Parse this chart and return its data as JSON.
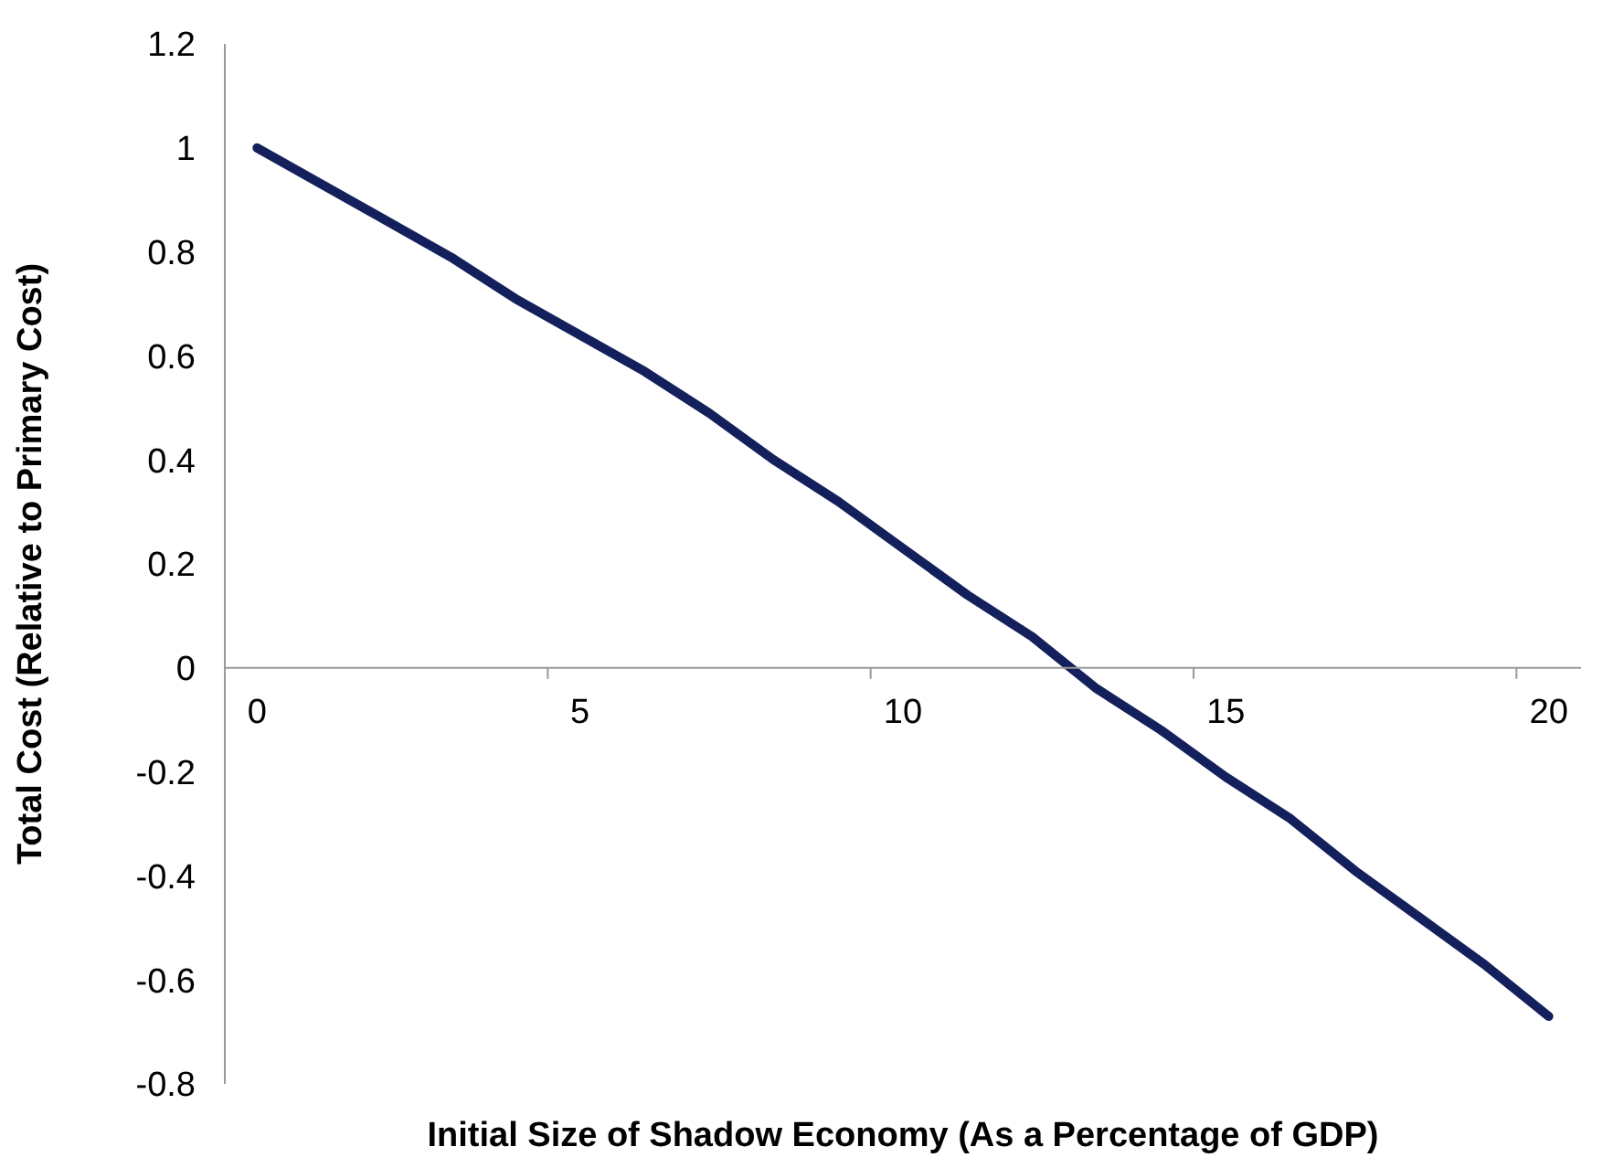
{
  "chart_data": {
    "type": "line",
    "xlabel": "Initial Size of Shadow Economy (As a Percentage of GDP)",
    "ylabel": "Total Cost (Relative to Primary Cost)",
    "categories": [
      "0",
      null,
      null,
      null,
      null,
      "5",
      null,
      null,
      null,
      null,
      "10",
      null,
      null,
      null,
      null,
      "15",
      null,
      null,
      null,
      null,
      "20"
    ],
    "series": [
      {
        "color": "#13205c",
        "values": [
          1.0,
          0.93,
          0.86,
          0.79,
          0.71,
          0.64,
          0.57,
          0.49,
          0.4,
          0.32,
          0.23,
          0.14,
          0.06,
          -0.04,
          -0.12,
          -0.21,
          -0.29,
          -0.39,
          -0.48,
          -0.57,
          -0.67
        ]
      }
    ],
    "ylim": [
      -0.8,
      1.2
    ],
    "yticks": [
      -0.8,
      -0.6,
      -0.4,
      -0.2,
      0,
      0.2,
      0.4,
      0.6,
      0.8,
      1,
      1.2
    ],
    "marker": "none",
    "line_style": "solid"
  }
}
